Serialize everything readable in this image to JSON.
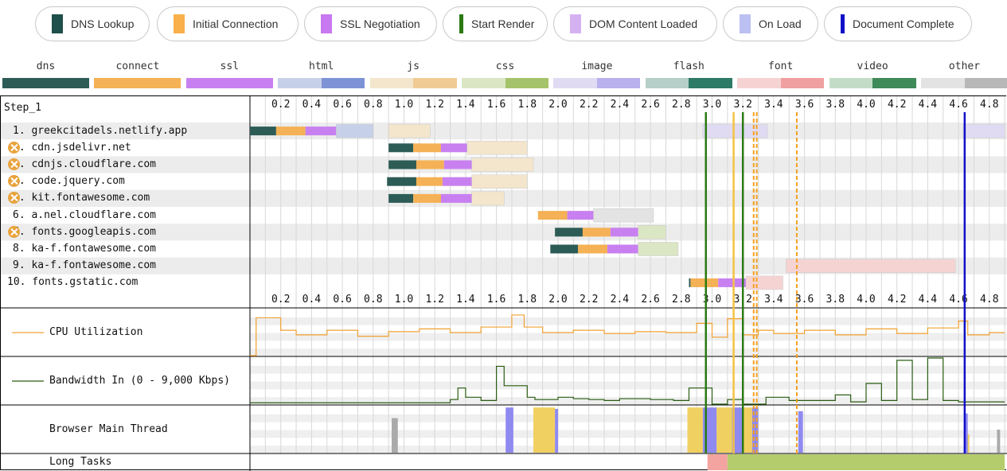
{
  "legend": [
    {
      "label": "DNS Lookup",
      "color": "#1f4f4a"
    },
    {
      "label": "Initial Connection",
      "color": "#f7b04a"
    },
    {
      "label": "SSL Negotiation",
      "color": "#c878f0"
    },
    {
      "label": "Start Render",
      "color": "#2a7a12"
    },
    {
      "label": "DOM Content Loaded",
      "color": "#d6b1f2"
    },
    {
      "label": "On Load",
      "color": "#bcc0f2"
    },
    {
      "label": "Document Complete",
      "color": "#1010c8"
    }
  ],
  "types": [
    {
      "label": "dns",
      "a": "#2d5c56",
      "b": "#2d5c56"
    },
    {
      "label": "connect",
      "a": "#f4b155",
      "b": "#f4b155"
    },
    {
      "label": "ssl",
      "a": "#c880f0",
      "b": "#c880f0"
    },
    {
      "label": "html",
      "a": "#c6d0e8",
      "b": "#7e93d6"
    },
    {
      "label": "js",
      "a": "#f3e6cc",
      "b": "#f0cc94"
    },
    {
      "label": "css",
      "a": "#dbe6c4",
      "b": "#a5c36a"
    },
    {
      "label": "image",
      "a": "#e0dbf2",
      "b": "#b9b0ee"
    },
    {
      "label": "flash",
      "a": "#b6cfc8",
      "b": "#2d7a66"
    },
    {
      "label": "font",
      "a": "#f6d3d3",
      "b": "#f0a0a0"
    },
    {
      "label": "video",
      "a": "#c2dcc8",
      "b": "#3e8a58"
    },
    {
      "label": "other",
      "a": "#e3e3e3",
      "b": "#b8b8b8"
    }
  ],
  "step_label": "Step_1",
  "chart_data": {
    "type": "waterfall",
    "x_ticks": [
      0.2,
      0.4,
      0.6,
      0.8,
      1.0,
      1.2,
      1.4,
      1.6,
      1.8,
      2.0,
      2.2,
      2.4,
      2.6,
      2.8,
      3.0,
      3.2,
      3.4,
      3.6,
      3.8,
      4.0,
      4.2,
      4.4,
      4.6,
      4.8
    ],
    "x_tick_labels": [
      "0.2",
      "0.4",
      "0.6",
      "0.8",
      "1.0",
      "1.2",
      "1.4",
      "1.6",
      "1.8",
      "2.0",
      "2.2",
      "2.4",
      "2.6",
      "2.8",
      "3.0",
      "3.2",
      "3.4",
      "3.6",
      "3.8",
      "4.0",
      "4.2",
      "4.4",
      "4.6",
      "4.8"
    ],
    "xlim": [
      0,
      4.9
    ],
    "requests": [
      {
        "label": "1. greekcitadels.netlify.app",
        "warn": false,
        "type": "html",
        "dns": [
          0.0,
          0.17
        ],
        "connect": [
          0.17,
          0.36
        ],
        "ssl": [
          0.36,
          0.56
        ],
        "wait": [
          0.56,
          0.8
        ],
        "recv": [
          0.8,
          0.8
        ],
        "extra": [
          {
            "type": "js",
            "start": 0.9,
            "end": 1.17
          },
          {
            "type": "image",
            "start": 2.94,
            "end": 3.36
          },
          {
            "type": "image",
            "start": 4.63,
            "end": 4.9
          }
        ]
      },
      {
        "label": "2. cdn.jsdelivr.net",
        "warn": true,
        "type": "js",
        "dns": [
          0.9,
          1.06
        ],
        "connect": [
          1.06,
          1.24
        ],
        "ssl": [
          1.24,
          1.41
        ],
        "wait": [
          1.41,
          1.8
        ],
        "recv": [
          1.8,
          1.8
        ]
      },
      {
        "label": "3. cdnjs.cloudflare.com",
        "warn": true,
        "type": "js",
        "dns": [
          0.9,
          1.08
        ],
        "connect": [
          1.08,
          1.26
        ],
        "ssl": [
          1.26,
          1.44
        ],
        "wait": [
          1.44,
          1.84
        ],
        "recv": [
          1.84,
          1.84
        ]
      },
      {
        "label": "4. code.jquery.com",
        "warn": true,
        "type": "js",
        "dns": [
          0.89,
          1.08
        ],
        "connect": [
          1.08,
          1.25
        ],
        "ssl": [
          1.25,
          1.44
        ],
        "wait": [
          1.44,
          1.8
        ],
        "recv": [
          1.8,
          1.8
        ]
      },
      {
        "label": "5. kit.fontawesome.com",
        "warn": true,
        "type": "js",
        "dns": [
          0.9,
          1.06
        ],
        "connect": [
          1.06,
          1.24
        ],
        "ssl": [
          1.24,
          1.44
        ],
        "wait": [
          1.44,
          1.65
        ],
        "recv": [
          1.65,
          1.65
        ]
      },
      {
        "label": "6. a.nel.cloudflare.com",
        "warn": false,
        "type": "other",
        "dns": [
          1.87,
          1.87
        ],
        "connect": [
          1.87,
          2.06
        ],
        "ssl": [
          2.06,
          2.23
        ],
        "wait": [
          2.23,
          2.62
        ],
        "recv": [
          2.62,
          2.62
        ]
      },
      {
        "label": "7. fonts.googleapis.com",
        "warn": true,
        "type": "css",
        "dns": [
          1.98,
          2.16
        ],
        "connect": [
          2.16,
          2.34
        ],
        "ssl": [
          2.34,
          2.52
        ],
        "wait": [
          2.52,
          2.7
        ],
        "recv": [
          2.7,
          2.7
        ]
      },
      {
        "label": "8. ka-f.fontawesome.com",
        "warn": false,
        "type": "css",
        "dns": [
          1.95,
          2.13
        ],
        "connect": [
          2.13,
          2.32
        ],
        "ssl": [
          2.32,
          2.52
        ],
        "wait": [
          2.52,
          2.78
        ],
        "recv": [
          2.78,
          2.78
        ]
      },
      {
        "label": "9. ka-f.fontawesome.com",
        "warn": false,
        "type": "font",
        "dns": [
          3.48,
          3.48
        ],
        "connect": [
          3.48,
          3.48
        ],
        "ssl": [
          3.48,
          3.48
        ],
        "wait": [
          3.48,
          4.58
        ],
        "recv": [
          4.58,
          4.58
        ]
      },
      {
        "label": "10. fonts.gstatic.com",
        "warn": false,
        "type": "font",
        "dns": [
          2.85,
          2.86
        ],
        "connect": [
          2.86,
          3.04
        ],
        "ssl": [
          3.04,
          3.22
        ],
        "wait": [
          3.22,
          3.46
        ],
        "recv": [
          3.46,
          3.46
        ]
      }
    ],
    "markers": [
      {
        "name": "Start Render",
        "x": 2.96,
        "color": "#2a7a12",
        "style": "solid"
      },
      {
        "name": "Start Render",
        "x": 3.2,
        "color": "#2a7a12",
        "style": "solid"
      },
      {
        "name": "DOM Content Loaded",
        "x": 3.14,
        "color": "#f5c242",
        "style": "solid"
      },
      {
        "name": "DOM Content Loaded",
        "x": 3.27,
        "color": "#f5a020",
        "style": "dashed"
      },
      {
        "name": "DOM Content Loaded",
        "x": 3.29,
        "color": "#f5a020",
        "style": "dashed"
      },
      {
        "name": "On Load",
        "x": 3.55,
        "color": "#f5a020",
        "style": "dashed"
      },
      {
        "name": "Document Complete",
        "x": 4.64,
        "color": "#1010c8",
        "style": "solid"
      }
    ],
    "cpu": {
      "label": "CPU Utilization",
      "color": "#f0a030",
      "x": [
        0.0,
        0.04,
        0.04,
        0.2,
        0.2,
        0.3,
        0.3,
        0.5,
        0.5,
        0.7,
        0.7,
        0.9,
        0.9,
        1.1,
        1.1,
        1.3,
        1.3,
        1.5,
        1.5,
        1.7,
        1.7,
        1.78,
        1.78,
        1.9,
        1.9,
        2.1,
        2.1,
        2.3,
        2.3,
        2.5,
        2.5,
        2.7,
        2.7,
        2.9,
        2.9,
        3.0,
        3.0,
        3.1,
        3.1,
        3.2,
        3.2,
        3.3,
        3.3,
        3.4,
        3.4,
        3.6,
        3.6,
        3.8,
        3.8,
        4.0,
        4.0,
        4.2,
        4.2,
        4.4,
        4.4,
        4.6,
        4.6,
        4.66,
        4.66,
        4.8,
        4.8,
        4.9
      ],
      "y": [
        0.0,
        0.0,
        0.82,
        0.82,
        0.55,
        0.55,
        0.45,
        0.45,
        0.55,
        0.55,
        0.42,
        0.42,
        0.52,
        0.52,
        0.58,
        0.58,
        0.5,
        0.5,
        0.62,
        0.62,
        0.88,
        0.88,
        0.62,
        0.62,
        0.5,
        0.5,
        0.55,
        0.55,
        0.48,
        0.48,
        0.52,
        0.52,
        0.5,
        0.5,
        0.7,
        0.7,
        0.4,
        0.4,
        0.8,
        0.8,
        0.45,
        0.45,
        0.55,
        0.55,
        0.48,
        0.48,
        0.55,
        0.55,
        0.45,
        0.45,
        0.58,
        0.58,
        0.48,
        0.48,
        0.6,
        0.6,
        0.75,
        0.75,
        0.45,
        0.45,
        0.5,
        0.5
      ]
    },
    "bandwidth": {
      "label": "Bandwidth In (0 - 9,000 Kbps)",
      "color": "#2a5c12",
      "x": [
        0.0,
        1.3,
        1.3,
        1.35,
        1.35,
        1.4,
        1.4,
        1.5,
        1.5,
        1.6,
        1.6,
        1.65,
        1.65,
        1.8,
        1.8,
        1.85,
        1.85,
        2.0,
        2.0,
        2.1,
        2.1,
        2.2,
        2.2,
        2.3,
        2.3,
        2.4,
        2.4,
        2.6,
        2.6,
        2.75,
        2.75,
        2.85,
        2.85,
        3.0,
        3.0,
        3.1,
        3.1,
        3.2,
        3.2,
        3.35,
        3.35,
        3.5,
        3.5,
        3.8,
        3.8,
        3.9,
        3.9,
        4.0,
        4.0,
        4.1,
        4.1,
        4.2,
        4.2,
        4.3,
        4.3,
        4.4,
        4.4,
        4.5,
        4.5,
        4.6,
        4.6,
        4.9
      ],
      "y": [
        0.03,
        0.03,
        0.1,
        0.1,
        0.35,
        0.35,
        0.15,
        0.15,
        0.08,
        0.08,
        0.82,
        0.82,
        0.4,
        0.4,
        0.15,
        0.15,
        0.1,
        0.1,
        0.15,
        0.15,
        0.12,
        0.12,
        0.1,
        0.1,
        0.08,
        0.08,
        0.12,
        0.12,
        0.1,
        0.1,
        0.08,
        0.08,
        0.35,
        0.35,
        0.0,
        0.0,
        0.1,
        0.1,
        0.0,
        0.0,
        0.15,
        0.15,
        0.08,
        0.08,
        0.2,
        0.2,
        0.05,
        0.05,
        0.45,
        0.45,
        0.08,
        0.08,
        0.95,
        0.95,
        0.1,
        0.1,
        1.0,
        1.0,
        0.08,
        0.08,
        0.05,
        0.05
      ]
    },
    "main_thread": {
      "label": "Browser Main Thread",
      "bursts": [
        {
          "start": 0.92,
          "end": 0.96,
          "h": 0.75,
          "color": "#aaaaaa"
        },
        {
          "start": 1.66,
          "end": 1.71,
          "h": 0.98,
          "color": "#8f8af0"
        },
        {
          "start": 1.84,
          "end": 1.98,
          "h": 0.98,
          "color": "#f0d060"
        },
        {
          "start": 1.98,
          "end": 2.0,
          "h": 0.95,
          "color": "#8f8af0"
        },
        {
          "start": 2.84,
          "end": 2.94,
          "h": 0.98,
          "color": "#f0d060"
        },
        {
          "start": 2.94,
          "end": 3.03,
          "h": 0.98,
          "color": "#8f8af0"
        },
        {
          "start": 3.03,
          "end": 3.13,
          "h": 0.98,
          "color": "#f0d060"
        },
        {
          "start": 3.13,
          "end": 3.2,
          "h": 0.98,
          "color": "#8f8af0"
        },
        {
          "start": 3.2,
          "end": 3.26,
          "h": 0.98,
          "color": "#f0d060"
        },
        {
          "start": 3.26,
          "end": 3.3,
          "h": 0.98,
          "color": "#8f8af0"
        },
        {
          "start": 3.56,
          "end": 3.59,
          "h": 0.9,
          "color": "#8f8af0"
        },
        {
          "start": 4.64,
          "end": 4.67,
          "h": 0.4,
          "color": "#f0d060"
        },
        {
          "start": 4.64,
          "end": 4.66,
          "h": 0.85,
          "color": "#8f8af0"
        },
        {
          "start": 4.85,
          "end": 4.87,
          "h": 0.5,
          "color": "#aaaaaa"
        }
      ]
    },
    "long_tasks": {
      "label": "Long Tasks",
      "segments": [
        {
          "start": 2.97,
          "end": 3.1,
          "color": "#f4a4a0"
        },
        {
          "start": 3.1,
          "end": 4.9,
          "color": "#b5cc6c"
        }
      ]
    }
  }
}
